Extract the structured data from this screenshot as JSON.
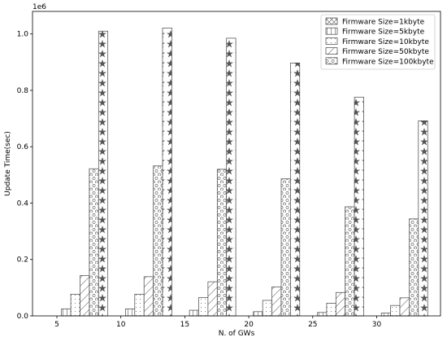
{
  "chart_data": {
    "type": "bar",
    "title": "",
    "xlabel": "N. of GWs",
    "ylabel": "Update Time(sec)",
    "y_offset_label": "1e6",
    "categories": [
      "5",
      "10",
      "15",
      "20",
      "25",
      "30"
    ],
    "ylim": [
      0,
      1.08
    ],
    "yticks": [
      "0.0",
      "0.2",
      "0.4",
      "0.6",
      "0.8",
      "1.0"
    ],
    "ytick_values": [
      0,
      0.2,
      0.4,
      0.6,
      0.8,
      1.0
    ],
    "grid": false,
    "legend_position": "top-right",
    "series": [
      {
        "name": "Firmware Size=1kbyte",
        "hatch": "x",
        "values": [
          0.0,
          0.0,
          0.0,
          0.0,
          0.0,
          0.0
        ]
      },
      {
        "name": "Firmware Size=5kbyte",
        "hatch": "vert",
        "values": [
          0.025,
          0.025,
          0.02,
          0.015,
          0.012,
          0.01
        ]
      },
      {
        "name": "Firmware Size=10kbyte",
        "hatch": "dots",
        "values": [
          0.077,
          0.077,
          0.065,
          0.055,
          0.045,
          0.037
        ]
      },
      {
        "name": "Firmware Size=50kbyte",
        "hatch": "diag",
        "values": [
          0.143,
          0.139,
          0.121,
          0.103,
          0.083,
          0.064
        ]
      },
      {
        "name": "Firmware Size=100kbyte",
        "hatch": "circ",
        "values": [
          0.522,
          0.532,
          0.52,
          0.486,
          0.387,
          0.344
        ]
      },
      {
        "name": "",
        "hatch": "star",
        "values": [
          1.01,
          1.021,
          0.985,
          0.897,
          0.776,
          0.692
        ]
      }
    ]
  }
}
